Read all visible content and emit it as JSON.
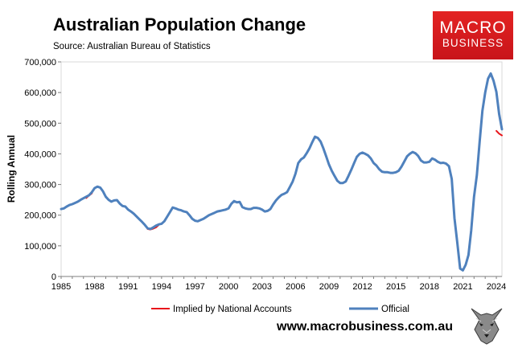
{
  "brand": {
    "logo_line1": "MACRO",
    "logo_line2": "BUSINESS",
    "website": "www.macrobusiness.com.au",
    "accent_color": "#d8181e"
  },
  "chart_data": {
    "type": "line",
    "title": "Australian Population Change",
    "subtitle": "Source: Australian Bureau of Statistics",
    "xlabel": "",
    "ylabel": "Rolling Annual",
    "xlim": [
      1985,
      2024.5
    ],
    "ylim": [
      0,
      700000
    ],
    "x_ticks": [
      1985,
      1988,
      1991,
      1994,
      1997,
      2000,
      2003,
      2006,
      2009,
      2012,
      2015,
      2018,
      2021,
      2024
    ],
    "y_ticks": [
      0,
      100000,
      200000,
      300000,
      400000,
      500000,
      600000,
      700000
    ],
    "y_tick_labels": [
      "0",
      "100,000",
      "200,000",
      "300,000",
      "400,000",
      "500,000",
      "600,000",
      "700,000"
    ],
    "legend_position": "bottom",
    "series": [
      {
        "name": "Implied by National Accounts",
        "color": "#e8151b",
        "points": [
          [
            1987.25,
            256000
          ],
          [
            1987.5,
            264000
          ],
          [
            1987.75,
            271000
          ],
          [
            1992.75,
            155000
          ],
          [
            1993.0,
            153000
          ],
          [
            1993.25,
            156000
          ],
          [
            1993.5,
            160000
          ],
          [
            1993.75,
            168000
          ],
          [
            2024.0,
            475000
          ],
          [
            2024.25,
            466000
          ],
          [
            2024.5,
            460000
          ]
        ]
      },
      {
        "name": "Official",
        "color": "#4f81bd",
        "points": [
          [
            1985.0,
            220000
          ],
          [
            1985.25,
            222000
          ],
          [
            1985.5,
            228000
          ],
          [
            1985.75,
            233000
          ],
          [
            1986.0,
            236000
          ],
          [
            1986.25,
            240000
          ],
          [
            1986.5,
            244000
          ],
          [
            1986.75,
            250000
          ],
          [
            1987.0,
            255000
          ],
          [
            1987.25,
            260000
          ],
          [
            1987.5,
            265000
          ],
          [
            1987.75,
            275000
          ],
          [
            1988.0,
            288000
          ],
          [
            1988.25,
            293000
          ],
          [
            1988.5,
            290000
          ],
          [
            1988.75,
            278000
          ],
          [
            1989.0,
            260000
          ],
          [
            1989.25,
            250000
          ],
          [
            1989.5,
            244000
          ],
          [
            1989.75,
            248000
          ],
          [
            1990.0,
            249000
          ],
          [
            1990.25,
            238000
          ],
          [
            1990.5,
            230000
          ],
          [
            1990.75,
            228000
          ],
          [
            1991.0,
            218000
          ],
          [
            1991.25,
            212000
          ],
          [
            1991.5,
            205000
          ],
          [
            1991.75,
            196000
          ],
          [
            1992.0,
            187000
          ],
          [
            1992.25,
            178000
          ],
          [
            1992.5,
            168000
          ],
          [
            1992.75,
            157000
          ],
          [
            1993.0,
            155000
          ],
          [
            1993.25,
            160000
          ],
          [
            1993.5,
            166000
          ],
          [
            1993.75,
            170000
          ],
          [
            1994.0,
            172000
          ],
          [
            1994.25,
            180000
          ],
          [
            1994.5,
            195000
          ],
          [
            1994.75,
            210000
          ],
          [
            1995.0,
            225000
          ],
          [
            1995.25,
            222000
          ],
          [
            1995.5,
            218000
          ],
          [
            1995.75,
            216000
          ],
          [
            1996.0,
            212000
          ],
          [
            1996.25,
            210000
          ],
          [
            1996.5,
            200000
          ],
          [
            1996.75,
            188000
          ],
          [
            1997.0,
            182000
          ],
          [
            1997.25,
            180000
          ],
          [
            1997.5,
            184000
          ],
          [
            1997.75,
            188000
          ],
          [
            1998.0,
            194000
          ],
          [
            1998.25,
            200000
          ],
          [
            1998.5,
            204000
          ],
          [
            1998.75,
            208000
          ],
          [
            1999.0,
            212000
          ],
          [
            1999.25,
            214000
          ],
          [
            1999.5,
            216000
          ],
          [
            1999.75,
            218000
          ],
          [
            2000.0,
            222000
          ],
          [
            2000.25,
            237000
          ],
          [
            2000.5,
            246000
          ],
          [
            2000.75,
            242000
          ],
          [
            2001.0,
            243000
          ],
          [
            2001.25,
            226000
          ],
          [
            2001.5,
            222000
          ],
          [
            2001.75,
            220000
          ],
          [
            2002.0,
            220000
          ],
          [
            2002.25,
            224000
          ],
          [
            2002.5,
            224000
          ],
          [
            2002.75,
            222000
          ],
          [
            2003.0,
            218000
          ],
          [
            2003.25,
            212000
          ],
          [
            2003.5,
            214000
          ],
          [
            2003.75,
            220000
          ],
          [
            2004.0,
            235000
          ],
          [
            2004.25,
            248000
          ],
          [
            2004.5,
            258000
          ],
          [
            2004.75,
            266000
          ],
          [
            2005.0,
            270000
          ],
          [
            2005.25,
            275000
          ],
          [
            2005.5,
            292000
          ],
          [
            2005.75,
            310000
          ],
          [
            2006.0,
            335000
          ],
          [
            2006.25,
            370000
          ],
          [
            2006.5,
            382000
          ],
          [
            2006.75,
            388000
          ],
          [
            2007.0,
            402000
          ],
          [
            2007.25,
            418000
          ],
          [
            2007.5,
            438000
          ],
          [
            2007.75,
            456000
          ],
          [
            2008.0,
            452000
          ],
          [
            2008.25,
            440000
          ],
          [
            2008.5,
            418000
          ],
          [
            2008.75,
            392000
          ],
          [
            2009.0,
            365000
          ],
          [
            2009.25,
            345000
          ],
          [
            2009.5,
            328000
          ],
          [
            2009.75,
            312000
          ],
          [
            2010.0,
            305000
          ],
          [
            2010.25,
            305000
          ],
          [
            2010.5,
            310000
          ],
          [
            2010.75,
            328000
          ],
          [
            2011.0,
            348000
          ],
          [
            2011.25,
            370000
          ],
          [
            2011.5,
            390000
          ],
          [
            2011.75,
            400000
          ],
          [
            2012.0,
            404000
          ],
          [
            2012.25,
            400000
          ],
          [
            2012.5,
            395000
          ],
          [
            2012.75,
            385000
          ],
          [
            2013.0,
            370000
          ],
          [
            2013.25,
            362000
          ],
          [
            2013.5,
            350000
          ],
          [
            2013.75,
            342000
          ],
          [
            2014.0,
            340000
          ],
          [
            2014.25,
            340000
          ],
          [
            2014.5,
            338000
          ],
          [
            2014.75,
            338000
          ],
          [
            2015.0,
            340000
          ],
          [
            2015.25,
            345000
          ],
          [
            2015.5,
            358000
          ],
          [
            2015.75,
            375000
          ],
          [
            2016.0,
            392000
          ],
          [
            2016.25,
            400000
          ],
          [
            2016.5,
            406000
          ],
          [
            2016.75,
            402000
          ],
          [
            2017.0,
            393000
          ],
          [
            2017.25,
            378000
          ],
          [
            2017.5,
            372000
          ],
          [
            2017.75,
            372000
          ],
          [
            2018.0,
            374000
          ],
          [
            2018.25,
            385000
          ],
          [
            2018.5,
            381000
          ],
          [
            2018.75,
            374000
          ],
          [
            2019.0,
            370000
          ],
          [
            2019.25,
            371000
          ],
          [
            2019.5,
            368000
          ],
          [
            2019.75,
            360000
          ],
          [
            2020.0,
            318000
          ],
          [
            2020.25,
            190000
          ],
          [
            2020.5,
            110000
          ],
          [
            2020.75,
            26000
          ],
          [
            2021.0,
            20000
          ],
          [
            2021.25,
            38000
          ],
          [
            2021.5,
            70000
          ],
          [
            2021.75,
            150000
          ],
          [
            2022.0,
            260000
          ],
          [
            2022.25,
            330000
          ],
          [
            2022.5,
            440000
          ],
          [
            2022.75,
            540000
          ],
          [
            2023.0,
            600000
          ],
          [
            2023.25,
            645000
          ],
          [
            2023.5,
            662000
          ],
          [
            2023.75,
            638000
          ],
          [
            2024.0,
            602000
          ],
          [
            2024.25,
            530000
          ],
          [
            2024.5,
            480000
          ]
        ]
      }
    ]
  }
}
